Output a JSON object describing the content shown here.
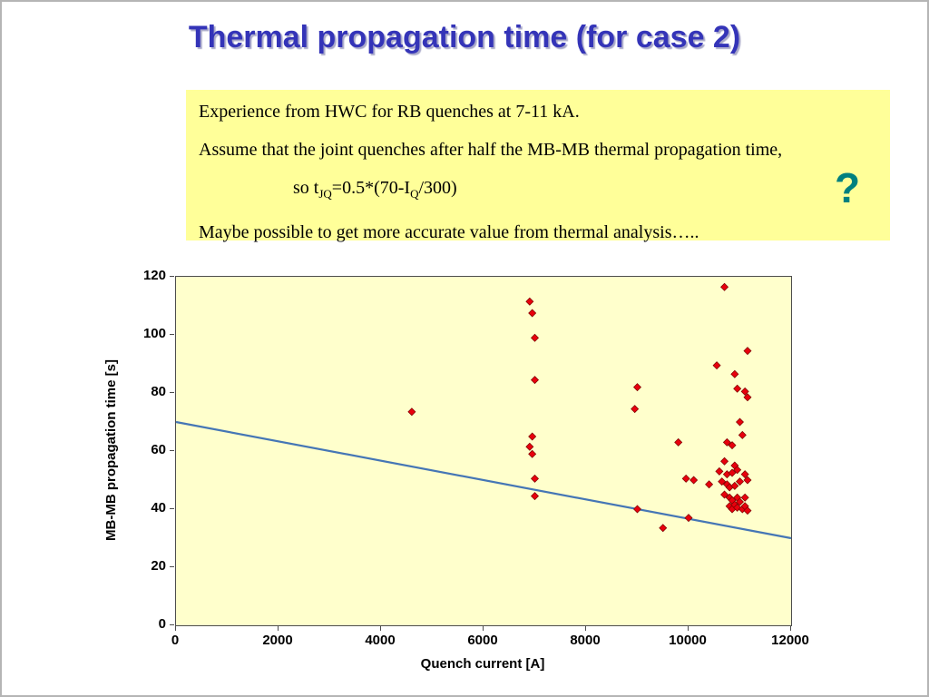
{
  "slide": {
    "title": "Thermal propagation time (for case 2)",
    "question_mark": "?"
  },
  "notes": {
    "line1": "Experience from HWC for RB quenches at 7-11 kA.",
    "line2": "Assume that the joint quenches after half the MB-MB thermal propagation time,",
    "formula": {
      "pre": "so t",
      "sub1": "JQ",
      "mid": "=0.5*(70-I",
      "sub2": "Q",
      "post": "/300)"
    },
    "line4": "Maybe possible to get more accurate value from thermal analysis….."
  },
  "chart_data": {
    "type": "scatter",
    "title": "",
    "xlabel": "Quench current [A]",
    "ylabel": "MB-MB propagation time [s]",
    "xlim": [
      0,
      12000
    ],
    "ylim": [
      0,
      120
    ],
    "x_ticks": [
      0,
      2000,
      4000,
      6000,
      8000,
      10000,
      12000
    ],
    "y_ticks": [
      0,
      20,
      40,
      60,
      80,
      100,
      120
    ],
    "grid": false,
    "legend": "none",
    "plot_bg": "#ffffcc",
    "marker": {
      "shape": "diamond",
      "color": "#e8000d",
      "edge": "#7a0000"
    },
    "trend_line": {
      "color": "#4576b5",
      "points": [
        [
          0,
          70
        ],
        [
          12000,
          30
        ]
      ]
    },
    "points": [
      [
        4600,
        73.5
      ],
      [
        6900,
        111.5
      ],
      [
        6950,
        107.5
      ],
      [
        7000,
        99
      ],
      [
        7000,
        84.5
      ],
      [
        6950,
        65
      ],
      [
        6900,
        61.5
      ],
      [
        6950,
        59
      ],
      [
        7000,
        50.5
      ],
      [
        7000,
        44.5
      ],
      [
        9000,
        82
      ],
      [
        8950,
        74.5
      ],
      [
        9000,
        40
      ],
      [
        9500,
        33.5
      ],
      [
        9800,
        63
      ],
      [
        9950,
        50.5
      ],
      [
        10100,
        50
      ],
      [
        10000,
        37
      ],
      [
        10400,
        48.5
      ],
      [
        10700,
        116.5
      ],
      [
        10550,
        89.5
      ],
      [
        11150,
        94.5
      ],
      [
        10900,
        86.5
      ],
      [
        10950,
        81.5
      ],
      [
        11100,
        80.5
      ],
      [
        11150,
        78.5
      ],
      [
        11000,
        70
      ],
      [
        11050,
        65.5
      ],
      [
        10750,
        63
      ],
      [
        10850,
        62
      ],
      [
        10700,
        56.5
      ],
      [
        10900,
        55
      ],
      [
        10600,
        53
      ],
      [
        10750,
        52
      ],
      [
        10850,
        52.5
      ],
      [
        10950,
        53.5
      ],
      [
        11100,
        52
      ],
      [
        10650,
        49.5
      ],
      [
        10750,
        48.5
      ],
      [
        10800,
        47.5
      ],
      [
        10900,
        48
      ],
      [
        11000,
        49.5
      ],
      [
        11150,
        50
      ],
      [
        10700,
        45
      ],
      [
        10800,
        44
      ],
      [
        10850,
        43
      ],
      [
        10950,
        44
      ],
      [
        11000,
        42.5
      ],
      [
        11100,
        44
      ],
      [
        10800,
        41
      ],
      [
        10850,
        40
      ],
      [
        10900,
        41.5
      ],
      [
        10950,
        40.5
      ],
      [
        11050,
        40
      ],
      [
        11100,
        41
      ],
      [
        11150,
        39.5
      ]
    ]
  },
  "colors": {
    "title_blue": "#3434b8",
    "note_box_yellow": "#ffff99",
    "question_teal": "#00807f",
    "plot_background": "#ffffcc",
    "marker_red": "#e8000d",
    "trend_blue": "#4576b5"
  }
}
